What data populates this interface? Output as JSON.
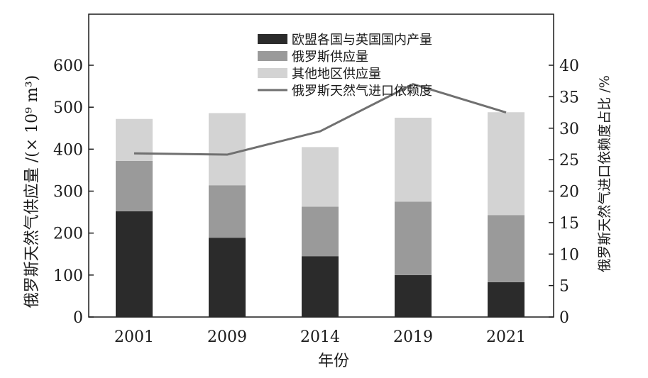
{
  "chart_data": {
    "type": "bar",
    "stacked": true,
    "categories": [
      "2001",
      "2009",
      "2014",
      "2019",
      "2021"
    ],
    "xlabel": "年份",
    "ylabel_left": "俄罗斯天然气供应量 /(× 10⁹ m³)",
    "ylabel_right": "俄罗斯天然气进口依赖度占比 /%",
    "ylim_left": [
      0,
      600
    ],
    "ylim_right": [
      0,
      40
    ],
    "yticks_left": [
      "0",
      "100",
      "200",
      "300",
      "400",
      "500",
      "600"
    ],
    "yticks_right": [
      "0",
      "5",
      "10",
      "15",
      "20",
      "25",
      "30",
      "35",
      "40"
    ],
    "legend_position": "top-center",
    "grid": false,
    "series": [
      {
        "name": "欧盟各国与英国国内产量",
        "type": "bar",
        "axis": "left",
        "color": "#2b2b2b",
        "values": [
          252,
          189,
          145,
          100,
          83
        ]
      },
      {
        "name": "俄罗斯供应量",
        "type": "bar",
        "axis": "left",
        "color": "#9a9a9a",
        "values": [
          120,
          125,
          118,
          175,
          160
        ]
      },
      {
        "name": "其他地区供应量",
        "type": "bar",
        "axis": "left",
        "color": "#d3d3d3",
        "values": [
          100,
          172,
          142,
          200,
          245
        ]
      },
      {
        "name": "俄罗斯天然气进口依赖度",
        "type": "line",
        "axis": "right",
        "color": "#707070",
        "values": [
          26,
          25.8,
          29.5,
          37,
          32.5
        ]
      }
    ]
  }
}
